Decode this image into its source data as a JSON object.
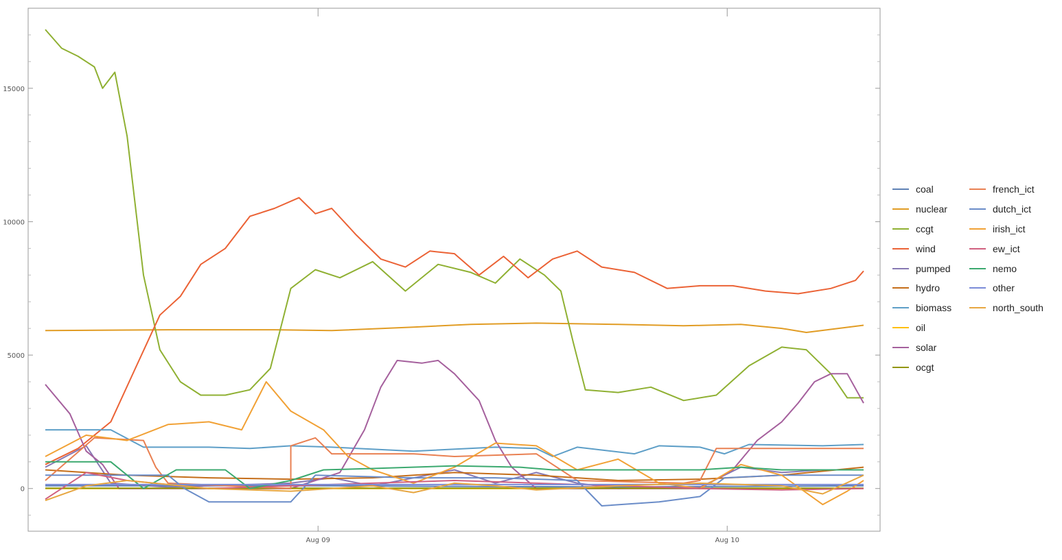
{
  "chart_data": {
    "type": "line",
    "title": "",
    "xlabel": "",
    "ylabel": "",
    "x_ticks": [
      {
        "t": 0.3333,
        "label": "Aug 09"
      },
      {
        "t": 0.8333,
        "label": "Aug 10"
      }
    ],
    "y_ticks": [
      0,
      5000,
      10000,
      15000
    ],
    "ylim": [
      -1600,
      18000
    ],
    "xlim": [
      0,
      1.0
    ],
    "legend_position": "right",
    "series": [
      {
        "name": "coal",
        "color": "#5e81b5",
        "points": [
          [
            0,
            100
          ],
          [
            0.35,
            100
          ],
          [
            0.5,
            80
          ],
          [
            0.7,
            60
          ],
          [
            0.85,
            80
          ],
          [
            1.0,
            100
          ]
        ]
      },
      {
        "name": "nuclear",
        "color": "#e19c24",
        "points": [
          [
            0,
            5920
          ],
          [
            0.15,
            5950
          ],
          [
            0.28,
            5950
          ],
          [
            0.35,
            5920
          ],
          [
            0.45,
            6050
          ],
          [
            0.52,
            6150
          ],
          [
            0.6,
            6200
          ],
          [
            0.7,
            6150
          ],
          [
            0.78,
            6100
          ],
          [
            0.85,
            6150
          ],
          [
            0.9,
            6000
          ],
          [
            0.93,
            5850
          ],
          [
            1.0,
            6120
          ]
        ]
      },
      {
        "name": "ccgt",
        "color": "#8fb032",
        "points": [
          [
            0,
            17200
          ],
          [
            0.02,
            16500
          ],
          [
            0.04,
            16200
          ],
          [
            0.06,
            15800
          ],
          [
            0.07,
            15000
          ],
          [
            0.085,
            15600
          ],
          [
            0.1,
            13200
          ],
          [
            0.12,
            8000
          ],
          [
            0.14,
            5200
          ],
          [
            0.165,
            4000
          ],
          [
            0.19,
            3500
          ],
          [
            0.22,
            3500
          ],
          [
            0.25,
            3700
          ],
          [
            0.275,
            4500
          ],
          [
            0.3,
            7500
          ],
          [
            0.33,
            8200
          ],
          [
            0.36,
            7900
          ],
          [
            0.4,
            8500
          ],
          [
            0.44,
            7400
          ],
          [
            0.48,
            8400
          ],
          [
            0.52,
            8100
          ],
          [
            0.55,
            7700
          ],
          [
            0.58,
            8600
          ],
          [
            0.61,
            8000
          ],
          [
            0.63,
            7400
          ],
          [
            0.645,
            5500
          ],
          [
            0.66,
            3700
          ],
          [
            0.7,
            3600
          ],
          [
            0.74,
            3800
          ],
          [
            0.78,
            3300
          ],
          [
            0.82,
            3500
          ],
          [
            0.86,
            4600
          ],
          [
            0.9,
            5300
          ],
          [
            0.93,
            5200
          ],
          [
            0.96,
            4300
          ],
          [
            0.98,
            3400
          ],
          [
            1.0,
            3400
          ]
        ]
      },
      {
        "name": "wind",
        "color": "#eb6235",
        "points": [
          [
            0,
            900
          ],
          [
            0.04,
            1500
          ],
          [
            0.08,
            2500
          ],
          [
            0.11,
            4500
          ],
          [
            0.14,
            6500
          ],
          [
            0.165,
            7200
          ],
          [
            0.19,
            8400
          ],
          [
            0.22,
            9000
          ],
          [
            0.25,
            10200
          ],
          [
            0.28,
            10500
          ],
          [
            0.31,
            10900
          ],
          [
            0.33,
            10300
          ],
          [
            0.35,
            10500
          ],
          [
            0.38,
            9500
          ],
          [
            0.41,
            8600
          ],
          [
            0.44,
            8300
          ],
          [
            0.47,
            8900
          ],
          [
            0.5,
            8800
          ],
          [
            0.53,
            8000
          ],
          [
            0.56,
            8700
          ],
          [
            0.59,
            7900
          ],
          [
            0.62,
            8600
          ],
          [
            0.65,
            8900
          ],
          [
            0.68,
            8300
          ],
          [
            0.72,
            8100
          ],
          [
            0.76,
            7500
          ],
          [
            0.8,
            7600
          ],
          [
            0.84,
            7600
          ],
          [
            0.88,
            7400
          ],
          [
            0.92,
            7300
          ],
          [
            0.96,
            7500
          ],
          [
            0.99,
            7800
          ],
          [
            1.0,
            8150
          ]
        ]
      },
      {
        "name": "pumped",
        "color": "#8778b3",
        "points": [
          [
            0,
            800
          ],
          [
            0.05,
            1600
          ],
          [
            0.08,
            200
          ],
          [
            0.15,
            50
          ],
          [
            0.3,
            200
          ],
          [
            0.35,
            400
          ],
          [
            0.4,
            100
          ],
          [
            0.5,
            700
          ],
          [
            0.55,
            200
          ],
          [
            0.6,
            600
          ],
          [
            0.65,
            200
          ],
          [
            0.7,
            0
          ],
          [
            0.8,
            50
          ],
          [
            0.85,
            800
          ],
          [
            0.9,
            600
          ],
          [
            0.95,
            700
          ],
          [
            1.0,
            700
          ]
        ]
      },
      {
        "name": "hydro",
        "color": "#c56e1a",
        "points": [
          [
            0,
            700
          ],
          [
            0.1,
            500
          ],
          [
            0.2,
            400
          ],
          [
            0.3,
            350
          ],
          [
            0.4,
            400
          ],
          [
            0.5,
            600
          ],
          [
            0.6,
            500
          ],
          [
            0.7,
            300
          ],
          [
            0.8,
            350
          ],
          [
            0.9,
            500
          ],
          [
            1.0,
            800
          ]
        ]
      },
      {
        "name": "biomass",
        "color": "#5d9ec7",
        "points": [
          [
            0,
            2200
          ],
          [
            0.08,
            2200
          ],
          [
            0.12,
            1550
          ],
          [
            0.2,
            1550
          ],
          [
            0.25,
            1500
          ],
          [
            0.3,
            1600
          ],
          [
            0.35,
            1550
          ],
          [
            0.45,
            1400
          ],
          [
            0.55,
            1550
          ],
          [
            0.6,
            1500
          ],
          [
            0.62,
            1200
          ],
          [
            0.65,
            1550
          ],
          [
            0.72,
            1300
          ],
          [
            0.75,
            1600
          ],
          [
            0.8,
            1550
          ],
          [
            0.83,
            1300
          ],
          [
            0.86,
            1650
          ],
          [
            0.95,
            1600
          ],
          [
            1.0,
            1650
          ]
        ]
      },
      {
        "name": "oil",
        "color": "#ffbf00",
        "points": [
          [
            0,
            0
          ],
          [
            1.0,
            0
          ]
        ]
      },
      {
        "name": "solar",
        "color": "#a5609d",
        "points": [
          [
            0,
            3900
          ],
          [
            0.03,
            2800
          ],
          [
            0.05,
            1400
          ],
          [
            0.07,
            900
          ],
          [
            0.09,
            0
          ],
          [
            0.3,
            0
          ],
          [
            0.36,
            600
          ],
          [
            0.39,
            2200
          ],
          [
            0.41,
            3800
          ],
          [
            0.43,
            4800
          ],
          [
            0.46,
            4700
          ],
          [
            0.48,
            4800
          ],
          [
            0.5,
            4300
          ],
          [
            0.53,
            3300
          ],
          [
            0.55,
            1800
          ],
          [
            0.57,
            800
          ],
          [
            0.6,
            0
          ],
          [
            0.8,
            0
          ],
          [
            0.84,
            700
          ],
          [
            0.87,
            1800
          ],
          [
            0.9,
            2500
          ],
          [
            0.92,
            3200
          ],
          [
            0.94,
            4000
          ],
          [
            0.96,
            4300
          ],
          [
            0.98,
            4300
          ],
          [
            1.0,
            3200
          ]
        ]
      },
      {
        "name": "ocgt",
        "color": "#929600",
        "points": [
          [
            0,
            10
          ],
          [
            1.0,
            10
          ]
        ]
      },
      {
        "name": "french_ict",
        "color": "#e98052",
        "points": [
          [
            0,
            300
          ],
          [
            0.06,
            1900
          ],
          [
            0.12,
            1800
          ],
          [
            0.135,
            800
          ],
          [
            0.15,
            200
          ],
          [
            0.3,
            0
          ],
          [
            0.3,
            1600
          ],
          [
            0.33,
            1900
          ],
          [
            0.35,
            1300
          ],
          [
            0.45,
            1300
          ],
          [
            0.5,
            1200
          ],
          [
            0.6,
            1300
          ],
          [
            0.65,
            300
          ],
          [
            0.78,
            200
          ],
          [
            0.8,
            300
          ],
          [
            0.82,
            1500
          ],
          [
            0.9,
            1500
          ],
          [
            1.0,
            1500
          ]
        ]
      },
      {
        "name": "dutch_ict",
        "color": "#6a8cc8",
        "points": [
          [
            0,
            500
          ],
          [
            0.15,
            500
          ],
          [
            0.17,
            0
          ],
          [
            0.2,
            -500
          ],
          [
            0.3,
            -500
          ],
          [
            0.33,
            500
          ],
          [
            0.45,
            400
          ],
          [
            0.55,
            400
          ],
          [
            0.65,
            300
          ],
          [
            0.68,
            -650
          ],
          [
            0.75,
            -500
          ],
          [
            0.8,
            -300
          ],
          [
            0.83,
            400
          ],
          [
            0.9,
            500
          ],
          [
            1.0,
            500
          ]
        ]
      },
      {
        "name": "irish_ict",
        "color": "#f1a135",
        "points": [
          [
            0,
            1200
          ],
          [
            0.05,
            2000
          ],
          [
            0.1,
            1800
          ],
          [
            0.15,
            2400
          ],
          [
            0.2,
            2500
          ],
          [
            0.24,
            2200
          ],
          [
            0.27,
            4000
          ],
          [
            0.3,
            2900
          ],
          [
            0.34,
            2200
          ],
          [
            0.37,
            1200
          ],
          [
            0.4,
            700
          ],
          [
            0.45,
            200
          ],
          [
            0.5,
            800
          ],
          [
            0.55,
            1700
          ],
          [
            0.6,
            1600
          ],
          [
            0.65,
            700
          ],
          [
            0.7,
            1100
          ],
          [
            0.75,
            200
          ],
          [
            0.8,
            0
          ],
          [
            0.85,
            900
          ],
          [
            0.9,
            500
          ],
          [
            0.95,
            -600
          ],
          [
            0.98,
            -100
          ],
          [
            1.0,
            300
          ]
        ]
      },
      {
        "name": "ew_ict",
        "color": "#d0607f",
        "points": [
          [
            0,
            -400
          ],
          [
            0.05,
            600
          ],
          [
            0.1,
            300
          ],
          [
            0.2,
            0
          ],
          [
            0.3,
            100
          ],
          [
            0.4,
            200
          ],
          [
            0.5,
            300
          ],
          [
            0.6,
            200
          ],
          [
            0.7,
            100
          ],
          [
            0.8,
            0
          ],
          [
            0.9,
            -50
          ],
          [
            1.0,
            0
          ]
        ]
      },
      {
        "name": "nemo",
        "color": "#3ba96f",
        "points": [
          [
            0,
            1000
          ],
          [
            0.08,
            1000
          ],
          [
            0.12,
            0
          ],
          [
            0.16,
            700
          ],
          [
            0.22,
            700
          ],
          [
            0.25,
            0
          ],
          [
            0.3,
            300
          ],
          [
            0.34,
            700
          ],
          [
            0.4,
            750
          ],
          [
            0.5,
            850
          ],
          [
            0.58,
            800
          ],
          [
            0.62,
            700
          ],
          [
            0.7,
            700
          ],
          [
            0.8,
            700
          ],
          [
            0.85,
            800
          ],
          [
            0.9,
            700
          ],
          [
            1.0,
            700
          ]
        ]
      },
      {
        "name": "other",
        "color": "#7a8bd8",
        "points": [
          [
            0,
            150
          ],
          [
            0.2,
            150
          ],
          [
            0.4,
            150
          ],
          [
            0.6,
            150
          ],
          [
            0.8,
            150
          ],
          [
            1.0,
            150
          ]
        ]
      },
      {
        "name": "north_south",
        "color": "#e7a640",
        "points": [
          [
            0,
            -450
          ],
          [
            0.05,
            100
          ],
          [
            0.1,
            300
          ],
          [
            0.2,
            0
          ],
          [
            0.3,
            -100
          ],
          [
            0.4,
            100
          ],
          [
            0.45,
            -150
          ],
          [
            0.5,
            200
          ],
          [
            0.55,
            100
          ],
          [
            0.6,
            -50
          ],
          [
            0.7,
            100
          ],
          [
            0.8,
            200
          ],
          [
            0.9,
            100
          ],
          [
            0.95,
            -200
          ],
          [
            1.0,
            500
          ]
        ]
      }
    ]
  }
}
